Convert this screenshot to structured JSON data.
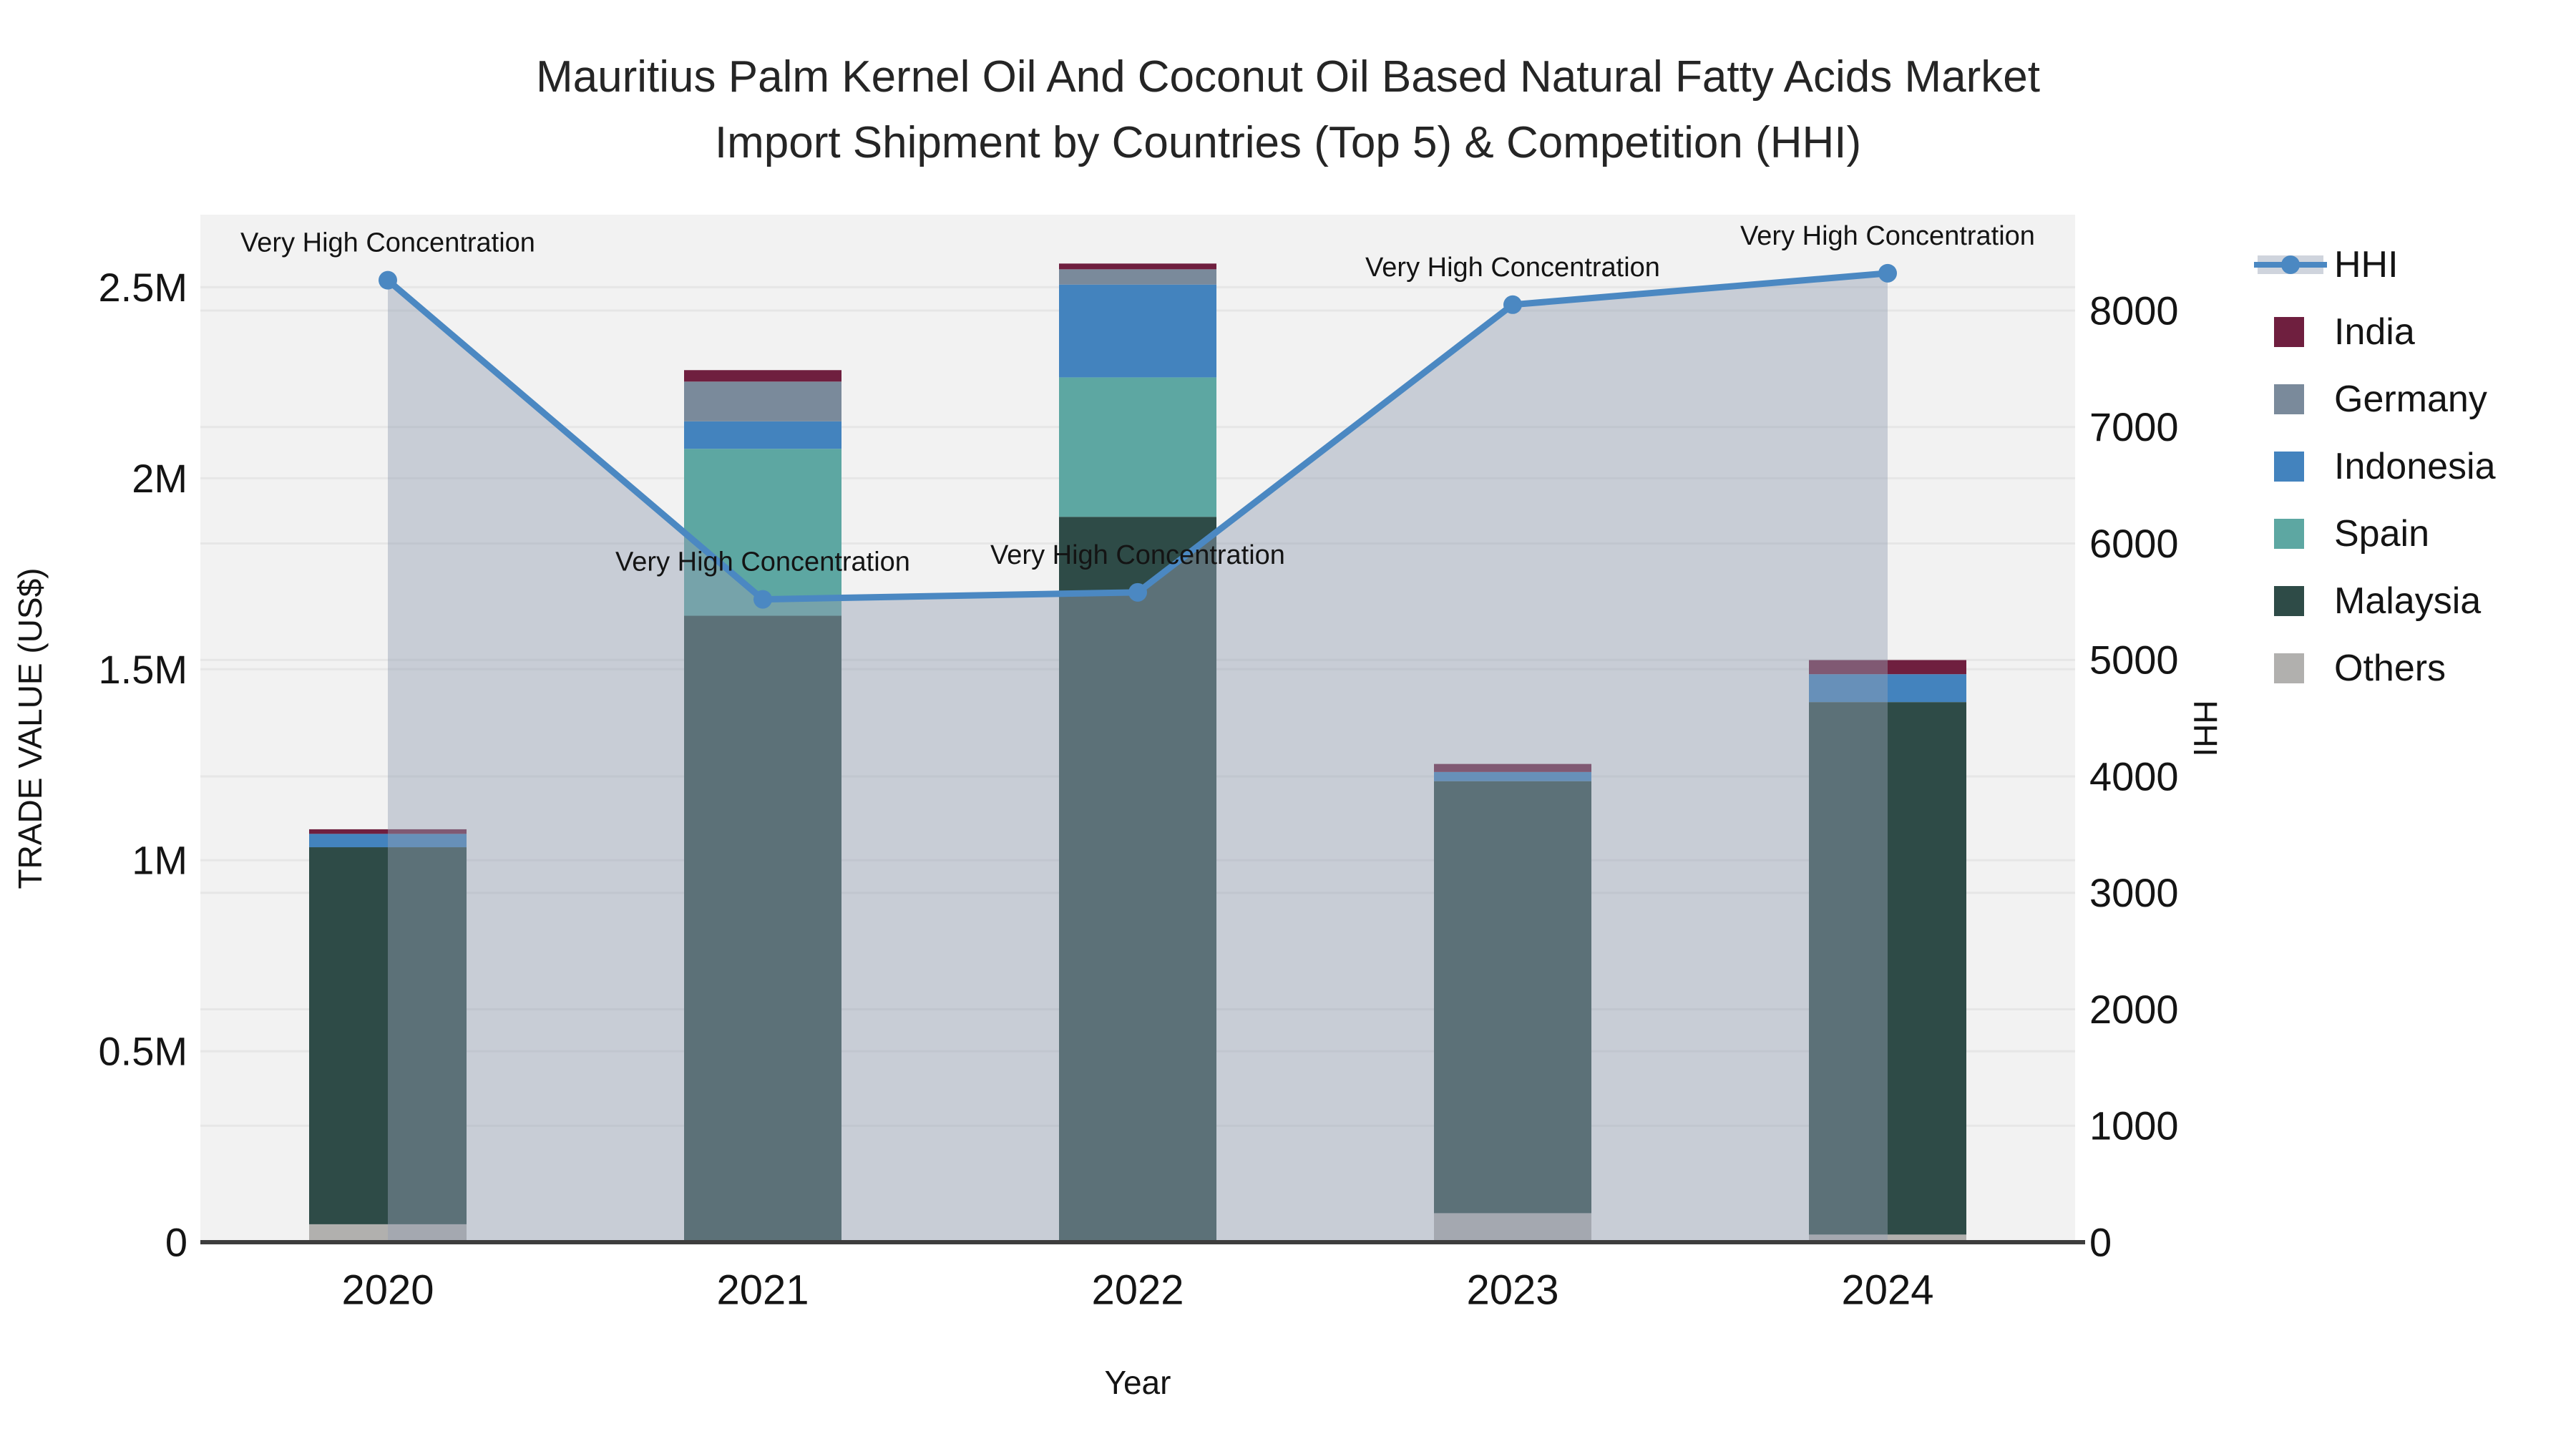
{
  "chart_data": {
    "type": "bar+line",
    "title": {
      "line1": "Mauritius Palm Kernel Oil And Coconut Oil Based Natural Fatty Acids Market",
      "line2": "Import Shipment by Countries (Top 5) & Competition (HHI)"
    },
    "categories": [
      "2020",
      "2021",
      "2022",
      "2023",
      "2024"
    ],
    "xlabel": "Year",
    "ylabel": "TRADE VALUE (US$)",
    "y2label": "HHI",
    "stack_order": [
      "Others",
      "Malaysia",
      "Spain",
      "Indonesia",
      "Germany",
      "India"
    ],
    "legend_order": [
      "India",
      "Germany",
      "Indonesia",
      "Spain",
      "Malaysia",
      "Others"
    ],
    "series": [
      {
        "name": "India",
        "color": "#6f1f3f",
        "values": [
          12000,
          30000,
          15000,
          21000,
          37000
        ]
      },
      {
        "name": "Germany",
        "color": "#7a8a9b",
        "values": [
          0,
          104000,
          40000,
          0,
          0
        ]
      },
      {
        "name": "Indonesia",
        "color": "#4383be",
        "values": [
          35000,
          72000,
          243000,
          24000,
          73000
        ]
      },
      {
        "name": "Spain",
        "color": "#5da7a2",
        "values": [
          0,
          437000,
          365000,
          0,
          0
        ]
      },
      {
        "name": "Malaysia",
        "color": "#2e4b47",
        "values": [
          987000,
          1640000,
          1899000,
          1131000,
          1394000
        ]
      },
      {
        "name": "Others",
        "color": "#b1b0ae",
        "values": [
          47000,
          0,
          0,
          76000,
          20000
        ]
      }
    ],
    "hhi": {
      "name": "HHI",
      "color": "#4b88c2",
      "fill": "rgba(149,160,180,0.45)",
      "values": [
        8260,
        5520,
        5580,
        8050,
        8320
      ],
      "annotation": "Very High Concentration"
    },
    "y_left": {
      "max": 2690000,
      "tick_values": [
        0,
        500000,
        1000000,
        1500000,
        2000000,
        2500000
      ],
      "tick_labels": [
        "0",
        "0.5M",
        "1M",
        "1.5M",
        "2M",
        "2.5M"
      ]
    },
    "y_right": {
      "max": 8823,
      "tick_values": [
        0,
        1000,
        2000,
        3000,
        4000,
        5000,
        6000,
        7000,
        8000
      ],
      "tick_labels": [
        "0",
        "1000",
        "2000",
        "3000",
        "4000",
        "5000",
        "6000",
        "7000",
        "8000"
      ]
    },
    "grid": true,
    "legend_position": "right",
    "plot_bg": "#f2f2f2",
    "grid_color": "#e6e6e6",
    "axis_line_color": "#3d3d3d"
  }
}
